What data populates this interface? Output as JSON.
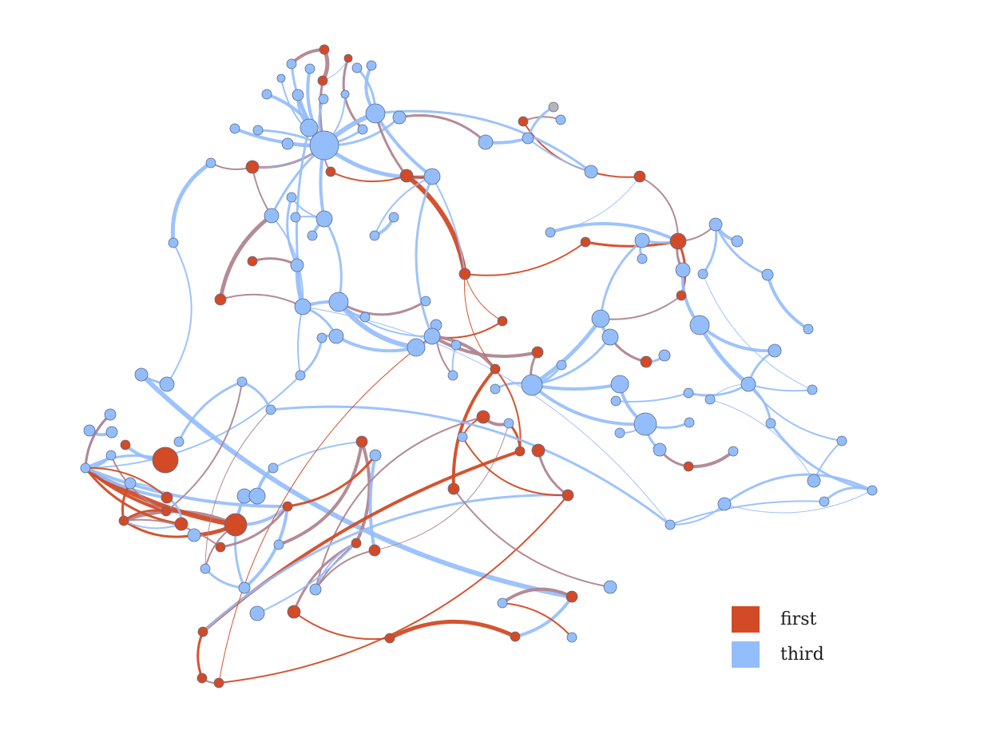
{
  "colors": {
    "first": "#d24b26",
    "third": "#94bdfc",
    "mixed": "#b08590",
    "other": "#b5b5b5"
  },
  "legend": {
    "items": [
      {
        "label": "first",
        "group": "first"
      },
      {
        "label": "third",
        "group": "third"
      }
    ]
  }
}
